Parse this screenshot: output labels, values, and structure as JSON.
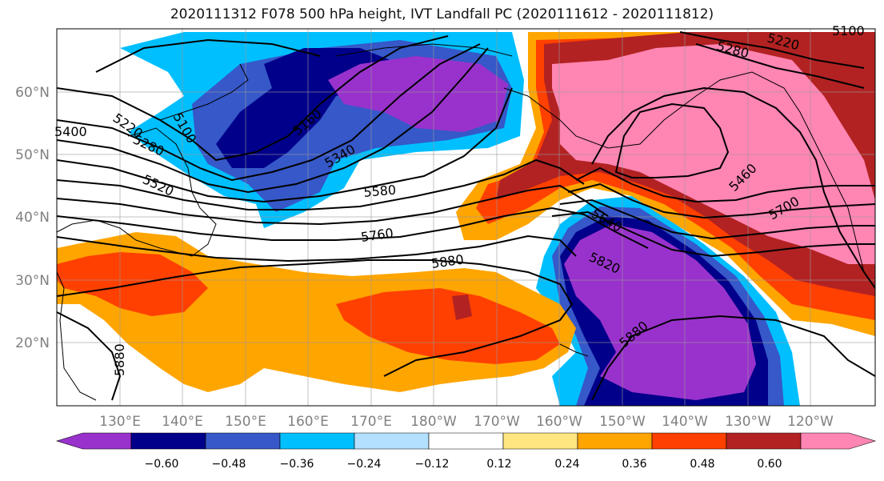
{
  "title": "2020111312 F078 500 hPa height, IVT Landfall PC (2020111612 - 2020111812)",
  "map": {
    "lat_labels": [
      "60°N",
      "50°N",
      "40°N",
      "30°N",
      "20°N"
    ],
    "lon_labels": [
      "130°E",
      "140°E",
      "150°E",
      "160°E",
      "170°E",
      "180°W",
      "170°W",
      "160°W",
      "150°W",
      "140°W",
      "130°W",
      "120°W"
    ],
    "contour_labels": [
      "5220",
      "5100",
      "5400",
      "5280",
      "5160",
      "5520",
      "5340",
      "5580",
      "5760",
      "5880",
      "5640",
      "5820",
      "5880",
      "5880",
      "5220",
      "5280",
      "5100",
      "5460",
      "5700"
    ]
  },
  "colorbar": {
    "colors": [
      "#9932cc",
      "#00008b",
      "#3658c8",
      "#00bfff",
      "#b3e0ff",
      "#ffffff",
      "#ffe680",
      "#ffa500",
      "#ff4000",
      "#b22222",
      "#ff85b3"
    ],
    "tick_labels": [
      "−0.60",
      "−0.48",
      "−0.36",
      "−0.24",
      "−0.12",
      "0.12",
      "0.24",
      "0.36",
      "0.48",
      "0.60"
    ]
  }
}
